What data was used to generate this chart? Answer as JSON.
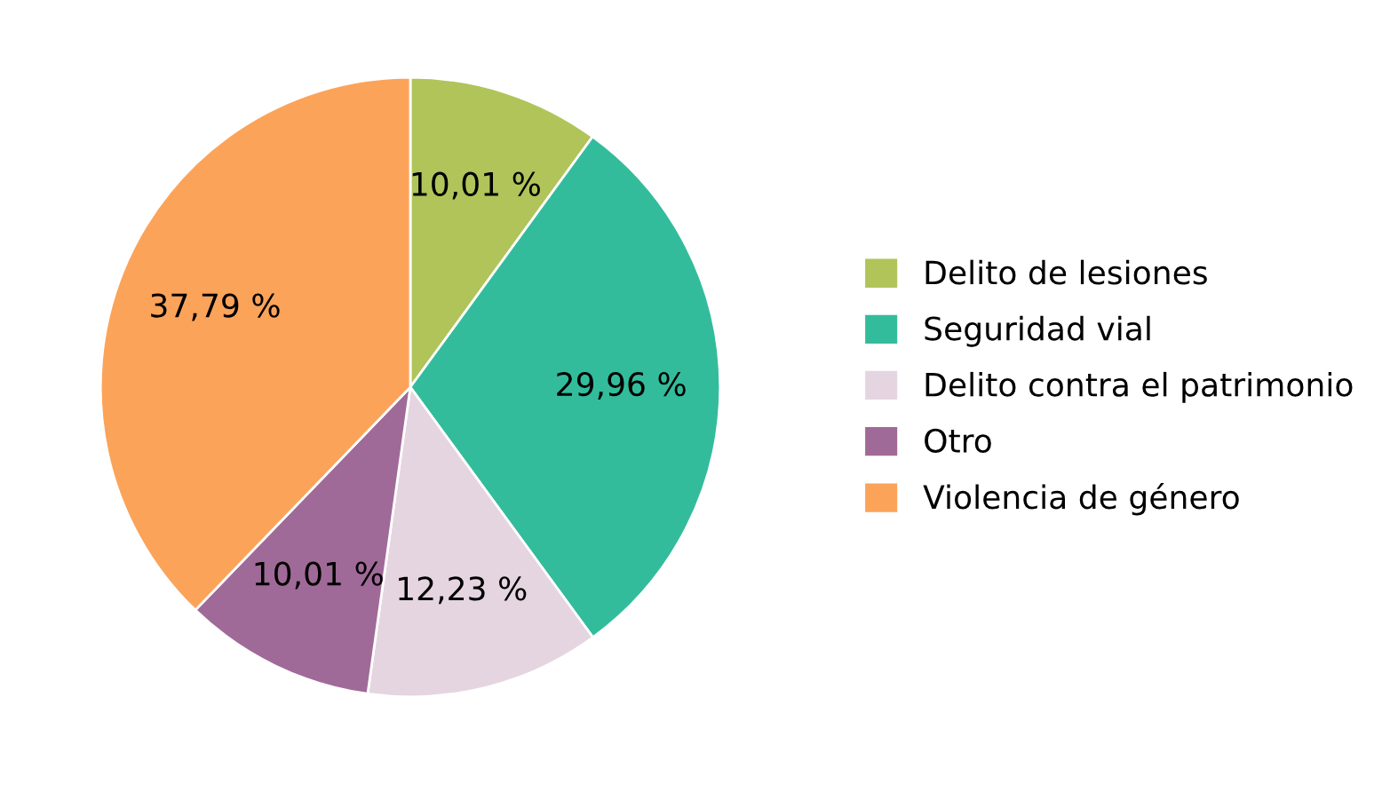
{
  "chart_data": {
    "type": "pie",
    "categories": [
      "Delito de lesiones",
      "Seguridad vial",
      "Delito contra el patrimonio",
      "Otro",
      "Violencia de género"
    ],
    "values": [
      10.01,
      29.96,
      12.23,
      10.01,
      37.79
    ],
    "value_labels": [
      "10,01 %",
      "29,96 %",
      "12,23 %",
      "10,01 %",
      "37,79 %"
    ],
    "colors": [
      "#b0c45a",
      "#33bc9c",
      "#e5d5e0",
      "#a06a98",
      "#fca35a"
    ],
    "legend": "right"
  }
}
